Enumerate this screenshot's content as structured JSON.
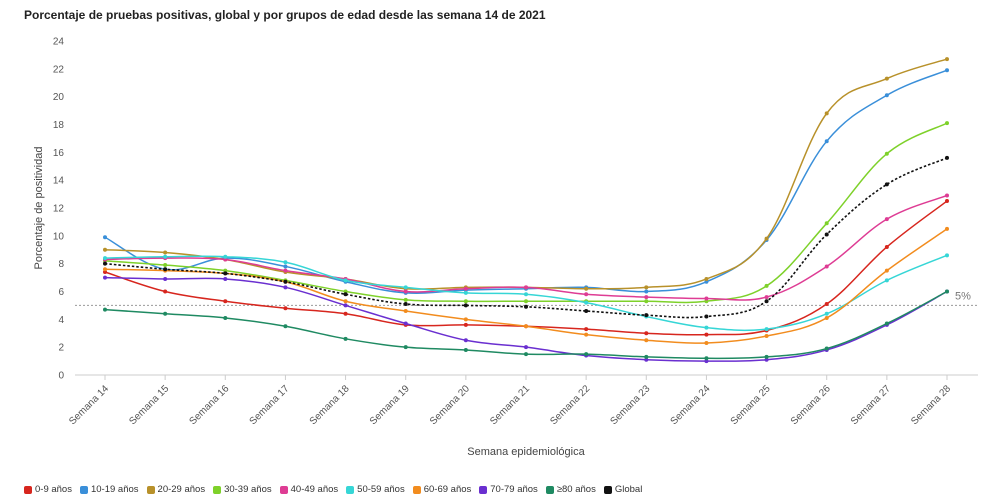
{
  "chart_data": {
    "type": "line",
    "title": "Porcentaje de pruebas positivas, global y por grupos de edad desde las semana 14 de 2021",
    "xlabel": "Semana epidemiológica",
    "ylabel": "Porcentaje de positividad",
    "ylim": [
      0,
      24
    ],
    "yticks": [
      0,
      2,
      4,
      6,
      8,
      10,
      12,
      14,
      16,
      18,
      20,
      22,
      24
    ],
    "grid": false,
    "legend_position": "bottom-left",
    "categories": [
      "Semana 14",
      "Semana 15",
      "Semana 16",
      "Semana 17",
      "Semana 18",
      "Semana 19",
      "Semana 20",
      "Semana 21",
      "Semana 22",
      "Semana 23",
      "Semana 24",
      "Semana 25",
      "Semana 26",
      "Semana 27",
      "Semana 28"
    ],
    "reference_line": {
      "value": 5,
      "label": "5%"
    },
    "series": [
      {
        "name": "0-9 años",
        "color": "#d7261e",
        "dashed": false,
        "values": [
          7.4,
          6.0,
          5.3,
          4.8,
          4.4,
          3.6,
          3.6,
          3.5,
          3.3,
          3.0,
          2.9,
          3.2,
          5.1,
          9.2,
          12.5
        ]
      },
      {
        "name": "10-19 años",
        "color": "#3a8fd9",
        "dashed": false,
        "values": [
          9.9,
          7.6,
          8.4,
          7.8,
          6.7,
          5.9,
          6.1,
          6.2,
          6.3,
          6.0,
          6.7,
          9.7,
          16.8,
          20.1,
          21.9
        ]
      },
      {
        "name": "20-29 años",
        "color": "#b8912a",
        "dashed": false,
        "values": [
          9.0,
          8.8,
          8.3,
          7.4,
          6.9,
          6.2,
          6.3,
          6.3,
          6.2,
          6.3,
          6.9,
          9.8,
          18.8,
          21.3,
          22.7
        ]
      },
      {
        "name": "30-39 años",
        "color": "#7ed12a",
        "dashed": false,
        "values": [
          8.2,
          7.9,
          7.5,
          6.8,
          6.0,
          5.4,
          5.3,
          5.3,
          5.3,
          5.3,
          5.3,
          6.4,
          10.9,
          15.9,
          18.1
        ]
      },
      {
        "name": "40-49 años",
        "color": "#de3c94",
        "dashed": false,
        "values": [
          8.3,
          8.4,
          8.3,
          7.5,
          6.9,
          6.0,
          6.2,
          6.3,
          5.8,
          5.6,
          5.5,
          5.6,
          7.8,
          11.2,
          12.9
        ]
      },
      {
        "name": "50-59 años",
        "color": "#36d6d6",
        "dashed": false,
        "values": [
          8.4,
          8.5,
          8.5,
          8.1,
          6.8,
          6.3,
          5.9,
          5.8,
          5.2,
          4.2,
          3.4,
          3.3,
          4.4,
          6.8,
          8.6
        ]
      },
      {
        "name": "60-69 años",
        "color": "#f28c1e",
        "dashed": false,
        "values": [
          7.6,
          7.5,
          7.3,
          6.7,
          5.3,
          4.6,
          4.0,
          3.5,
          2.9,
          2.5,
          2.3,
          2.8,
          4.1,
          7.5,
          10.5
        ]
      },
      {
        "name": "70-79 años",
        "color": "#6a2fd0",
        "dashed": false,
        "values": [
          7.0,
          6.9,
          6.9,
          6.3,
          5.0,
          3.7,
          2.5,
          2.0,
          1.4,
          1.1,
          1.0,
          1.1,
          1.8,
          3.6,
          6.0
        ]
      },
      {
        "name": "≥80 años",
        "color": "#1f8a62",
        "dashed": false,
        "values": [
          4.7,
          4.4,
          4.1,
          3.5,
          2.6,
          2.0,
          1.8,
          1.5,
          1.5,
          1.3,
          1.2,
          1.3,
          1.9,
          3.7,
          6.0
        ]
      },
      {
        "name": "Global",
        "color": "#111111",
        "dashed": true,
        "values": [
          8.0,
          7.6,
          7.3,
          6.7,
          5.8,
          5.1,
          5.0,
          4.9,
          4.6,
          4.3,
          4.2,
          5.3,
          10.1,
          13.7,
          15.6
        ]
      }
    ]
  }
}
